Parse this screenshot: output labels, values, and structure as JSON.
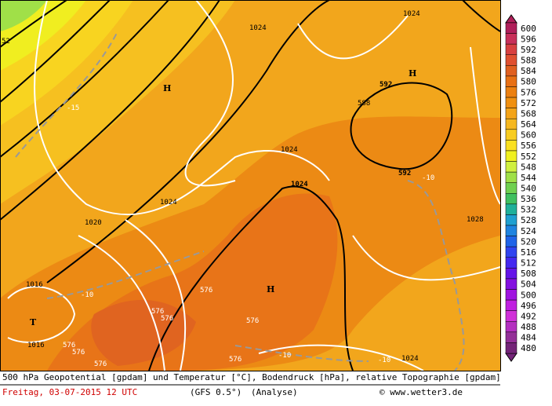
{
  "map": {
    "labels": [
      "52",
      "-15",
      "H",
      "1024",
      "1024",
      "1024",
      "592",
      "H",
      "588",
      "1024",
      "592",
      "-10",
      "1028",
      "1028",
      "1024",
      "1020",
      "1016",
      "T",
      "1016",
      "-10",
      "576",
      "576",
      "576",
      "576",
      "576",
      "576",
      "H",
      "576",
      "-10",
      "576",
      "-10",
      "1024"
    ],
    "legend": {
      "ticks": [
        600,
        596,
        592,
        588,
        584,
        580,
        576,
        572,
        568,
        564,
        560,
        556,
        552,
        548,
        544,
        540,
        536,
        532,
        528,
        524,
        520,
        516,
        512,
        508,
        504,
        500,
        496,
        492,
        488,
        484,
        480
      ],
      "colors": [
        "#b0205a",
        "#c8305a",
        "#d84040",
        "#e05030",
        "#e06020",
        "#e87014",
        "#ec8010",
        "#f09010",
        "#f4a418",
        "#f6b820",
        "#f8cc20",
        "#fae020",
        "#f0f020",
        "#d0f040",
        "#a0e048",
        "#70d050",
        "#40c060",
        "#20b09a",
        "#20a0d0",
        "#2084e0",
        "#2064e8",
        "#3044f0",
        "#4428f0",
        "#6414e8",
        "#8410e0",
        "#a014e0",
        "#c020e0",
        "#d030d8",
        "#b430c0",
        "#943098",
        "#742478"
      ]
    },
    "footer": {
      "line1": "500 hPa Geopotential [gpdam] und Temperatur [°C], Bodendruck [hPa], relative Topographie [gpdam]",
      "date": "Freitag, 03-07-2015  12 UTC",
      "model": "(GFS 0.5°)",
      "run": "(Analyse)",
      "copyright": "© www.wetter3.de"
    }
  }
}
